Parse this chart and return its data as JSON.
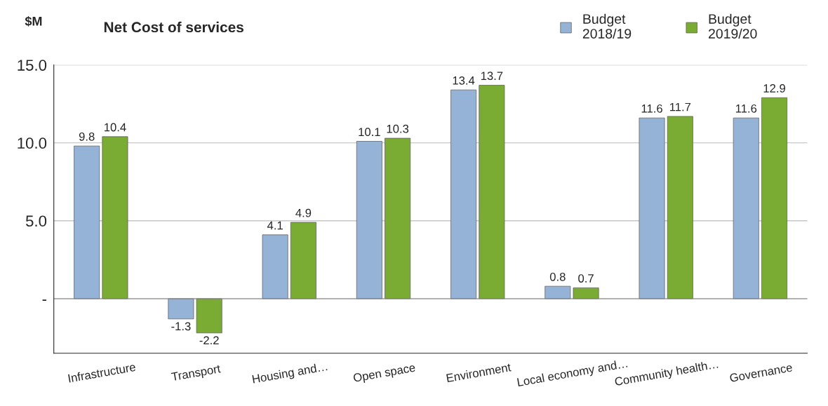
{
  "chart_data": {
    "type": "bar",
    "title": "Net Cost of services",
    "ylabel": "$M",
    "categories": [
      "Infrastructure",
      "Transport",
      "Housing and…",
      "Open space",
      "Environment",
      "Local economy and…",
      "Community health…",
      "Governance"
    ],
    "series": [
      {
        "name": "Budget\n2018/19",
        "color": "#95b3d7",
        "values": [
          9.8,
          -1.3,
          4.1,
          10.1,
          13.4,
          0.8,
          11.6,
          11.6
        ]
      },
      {
        "name": "Budget\n2019/20",
        "color": "#7aab32",
        "values": [
          10.4,
          -2.2,
          4.9,
          10.3,
          13.7,
          0.7,
          11.7,
          12.9
        ]
      }
    ],
    "ylim": [
      -3.5,
      15
    ],
    "yticks": [
      {
        "value": 0,
        "label": "-"
      },
      {
        "value": 5,
        "label": "5.0"
      },
      {
        "value": 10,
        "label": "10.0"
      },
      {
        "value": 15,
        "label": "15.0"
      }
    ],
    "grid": "y",
    "legend": "top right",
    "data_labels": true
  }
}
